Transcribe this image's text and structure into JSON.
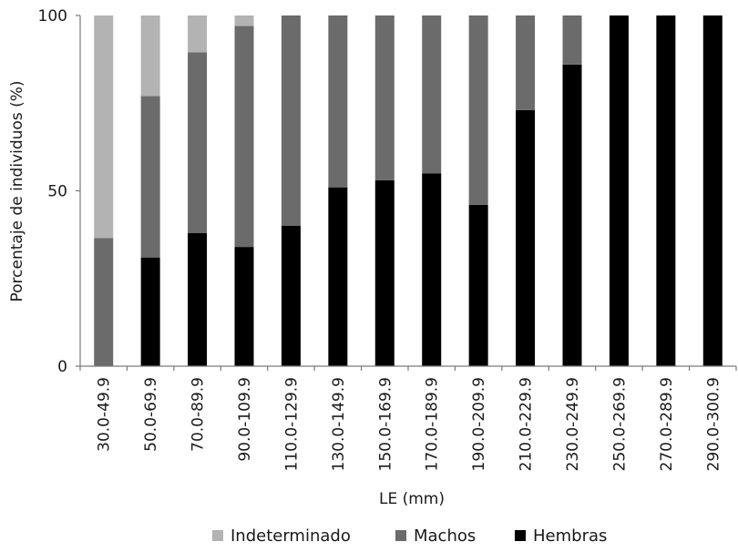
{
  "chart_data": {
    "type": "bar",
    "stacked": true,
    "xlabel": "LE (mm)",
    "ylabel": "Porcentaje de individuos (%)",
    "ylim": [
      0,
      100
    ],
    "yticks": [
      "0",
      "50",
      "100"
    ],
    "grid": false,
    "legend_position": "bottom",
    "categories": [
      "30.0-49.9",
      "50.0-69.9",
      "70.0-89.9",
      "90.0-109.9",
      "110.0-129.9",
      "130.0-149.9",
      "150.0-169.9",
      "170.0-189.9",
      "190.0-209.9",
      "210.0-229.9",
      "230.0-249.9",
      "250.0-269.9",
      "270.0-289.9",
      "290.0-300.9"
    ],
    "series": [
      {
        "name": "Hembras",
        "color": "#000000",
        "values": [
          0,
          31,
          38,
          34,
          40,
          51,
          53,
          55,
          46,
          73,
          86,
          100,
          100,
          100
        ]
      },
      {
        "name": "Machos",
        "color": "#6b6b6b",
        "values": [
          36.5,
          46,
          51.5,
          63,
          60,
          49,
          47,
          45,
          54,
          27,
          14,
          0,
          0,
          0
        ]
      },
      {
        "name": "Indeterminado",
        "color": "#b3b3b3",
        "values": [
          63.5,
          23,
          10.5,
          3,
          0,
          0,
          0,
          0,
          0,
          0,
          0,
          0,
          0,
          0
        ]
      }
    ],
    "legend_order": [
      "Indeterminado",
      "Machos",
      "Hembras"
    ]
  }
}
